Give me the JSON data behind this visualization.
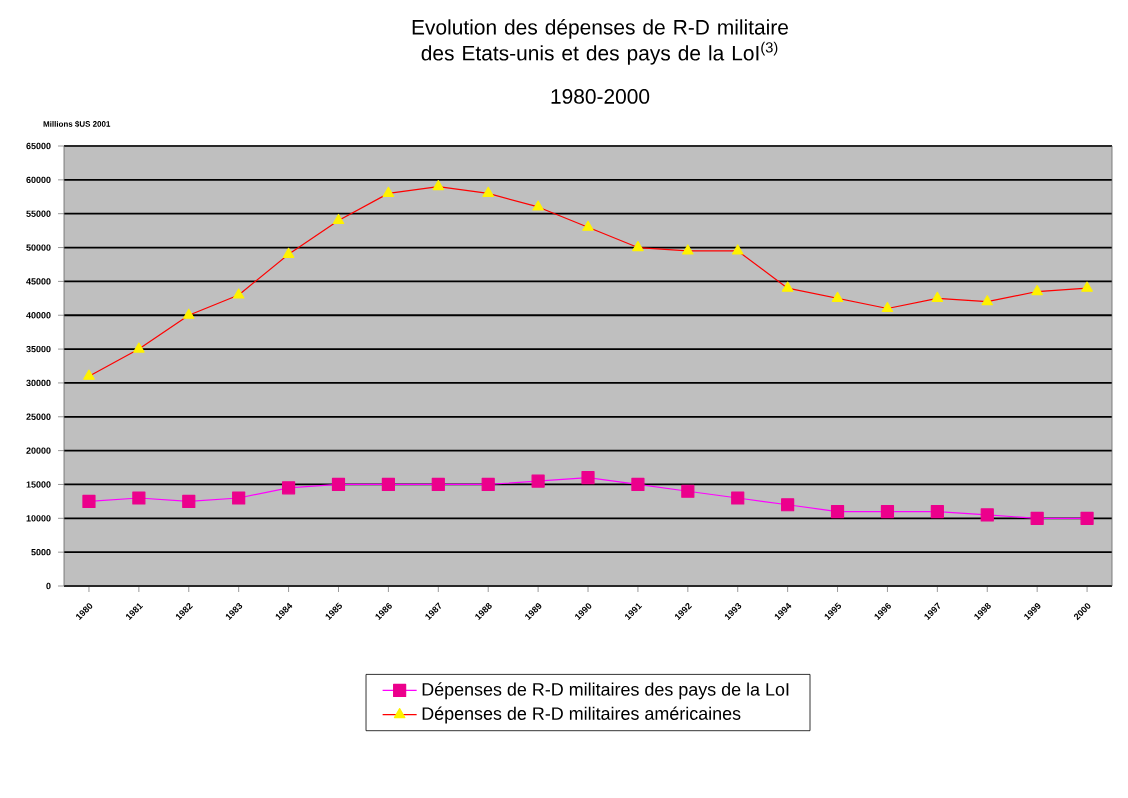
{
  "chart_data": {
    "type": "line",
    "title": "Evolution des dépenses de R-D militaire des Etats-unis et des pays de la LoI$^{(3)}$",
    "subtitle": "1980-2000",
    "ylabel": "Millions $US 2001",
    "categories": [
      "1980",
      "1981",
      "1982",
      "1983",
      "1984",
      "1985",
      "1986",
      "1987",
      "1988",
      "1989",
      "1990",
      "1991",
      "1992",
      "1993",
      "1994",
      "1995",
      "1996",
      "1997",
      "1998",
      "1999",
      "2000"
    ],
    "series": [
      {
        "name": "Dépenses de R-D militaires des pays de la LoI",
        "color": "#ff00ff",
        "marker": "square",
        "values": [
          12500,
          13000,
          12500,
          13000,
          14500,
          15000,
          15000,
          15000,
          15000,
          15500,
          16000,
          15000,
          14000,
          13000,
          12000,
          11000,
          11000,
          11000,
          10500,
          10000,
          10000
        ]
      },
      {
        "name": "Dépenses de R-D militaires américaines",
        "color": "#ff0000",
        "marker": "triangle",
        "values": [
          31000,
          35000,
          40000,
          43000,
          49000,
          54000,
          58000,
          59000,
          58000,
          56000,
          53000,
          50000,
          49500,
          49500,
          44000,
          42500,
          41000,
          42500,
          42000,
          43500,
          44000
        ]
      }
    ],
    "ylim": [
      0,
      65000
    ],
    "yticks": [
      0,
      5000,
      10000,
      15000,
      20000,
      25000,
      30000,
      35000,
      40000,
      45000,
      50000,
      55000,
      60000,
      65000
    ],
    "grid": "y",
    "legend": "bottom"
  }
}
